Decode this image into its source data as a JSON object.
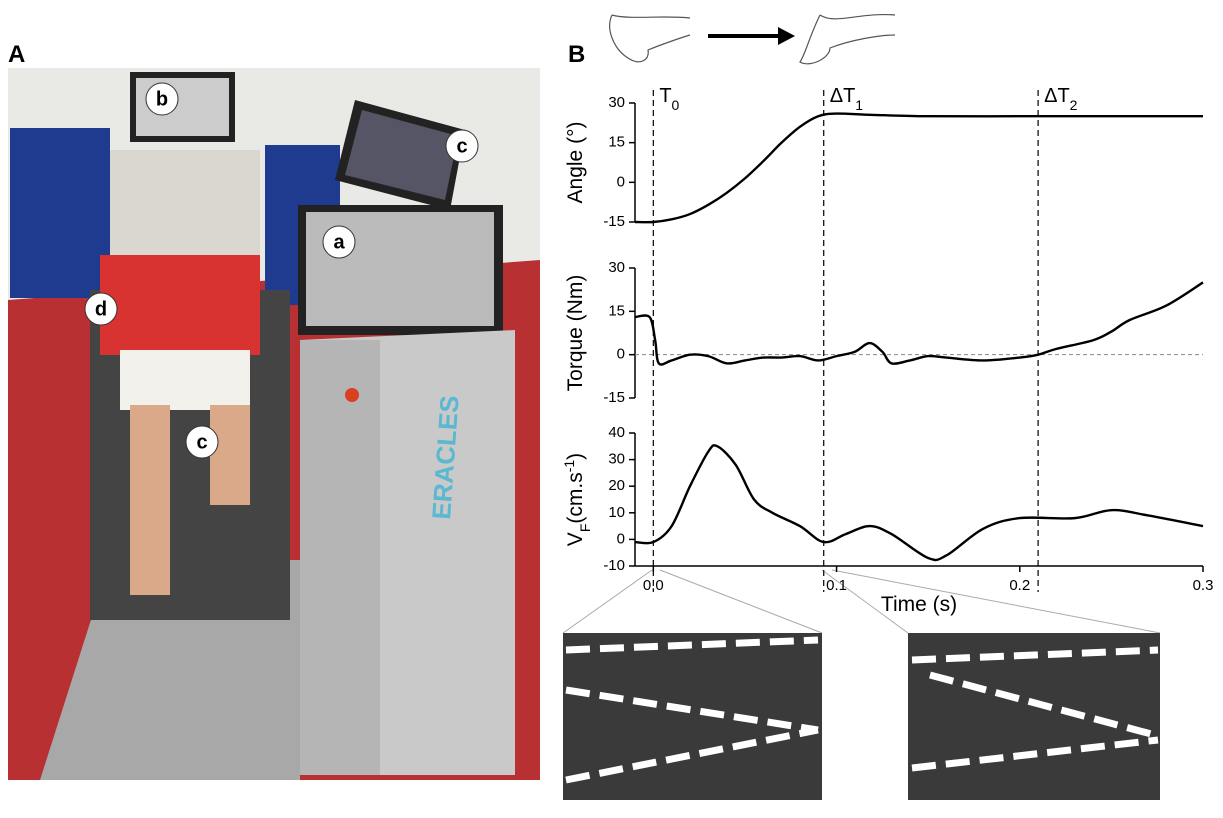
{
  "panel_labels": [
    "A",
    "B"
  ],
  "photo_labels": [
    "b",
    "c",
    "a",
    "d",
    "c"
  ],
  "markers": [
    {
      "x": 0,
      "label": "T",
      "sub": "0"
    },
    {
      "x": 0.093,
      "label": "ΔT",
      "sub": "1"
    },
    {
      "x": 0.21,
      "label": "ΔT",
      "sub": "2"
    }
  ],
  "chart_data": [
    {
      "type": "line",
      "ylabel": "Angle (°)",
      "color": "#000000",
      "x": [
        -0.01,
        0,
        0.01,
        0.02,
        0.03,
        0.04,
        0.05,
        0.06,
        0.07,
        0.08,
        0.09,
        0.1,
        0.12,
        0.15,
        0.2,
        0.25,
        0.3
      ],
      "values": [
        -15,
        -15,
        -14,
        -12,
        -8.5,
        -4,
        1.5,
        8,
        15,
        21,
        25,
        26,
        25.5,
        25,
        25,
        25,
        25
      ],
      "xlim": [
        -0.01,
        0.3
      ],
      "ylim": [
        -15,
        30
      ],
      "yticks": [
        -15,
        0,
        15,
        30
      ]
    },
    {
      "type": "line",
      "ylabel": "Torque (Nm)",
      "color": "#000000",
      "reference_line": 0,
      "x": [
        -0.01,
        -0.002,
        0.001,
        0.003,
        0.01,
        0.02,
        0.03,
        0.04,
        0.05,
        0.06,
        0.07,
        0.08,
        0.09,
        0.1,
        0.11,
        0.118,
        0.125,
        0.13,
        0.14,
        0.15,
        0.16,
        0.18,
        0.2,
        0.21,
        0.22,
        0.24,
        0.25,
        0.26,
        0.28,
        0.3
      ],
      "values": [
        13,
        13,
        5,
        -3,
        -2,
        0,
        -0.5,
        -3,
        -2,
        -1,
        -1,
        -0.5,
        -2,
        -0.5,
        1,
        4,
        1,
        -3,
        -2,
        -0.5,
        -1,
        -2,
        -1,
        0,
        2,
        5,
        8,
        12,
        17,
        25
      ],
      "xlim": [
        -0.01,
        0.3
      ],
      "ylim": [
        -15,
        30
      ],
      "yticks": [
        -15,
        0,
        15,
        30
      ]
    },
    {
      "type": "line",
      "color": "#000000",
      "ylabel_parts": [
        {
          "text": "V"
        },
        {
          "text": "F",
          "sub": true
        },
        {
          "text": "(cm.s"
        },
        {
          "text": "-1",
          "sup": true
        },
        {
          "text": ")"
        }
      ],
      "x": [
        -0.01,
        0,
        0.01,
        0.02,
        0.03,
        0.035,
        0.045,
        0.055,
        0.065,
        0.08,
        0.093,
        0.105,
        0.118,
        0.13,
        0.15,
        0.16,
        0.18,
        0.2,
        0.23,
        0.25,
        0.27,
        0.3
      ],
      "values": [
        -1,
        -1,
        5,
        20,
        33,
        35,
        28,
        15,
        10,
        5,
        -1,
        2,
        5,
        2,
        -7,
        -6,
        4,
        8,
        8,
        11,
        9,
        5
      ],
      "xlim": [
        -0.01,
        0.3
      ],
      "ylim": [
        -10,
        40
      ],
      "yticks": [
        -10,
        0,
        10,
        20,
        30,
        40
      ],
      "xticks": [
        {
          "value": 0,
          "label": "0.0"
        },
        0.1,
        0.2,
        0.3
      ],
      "xlabel": "Time (s)"
    }
  ]
}
